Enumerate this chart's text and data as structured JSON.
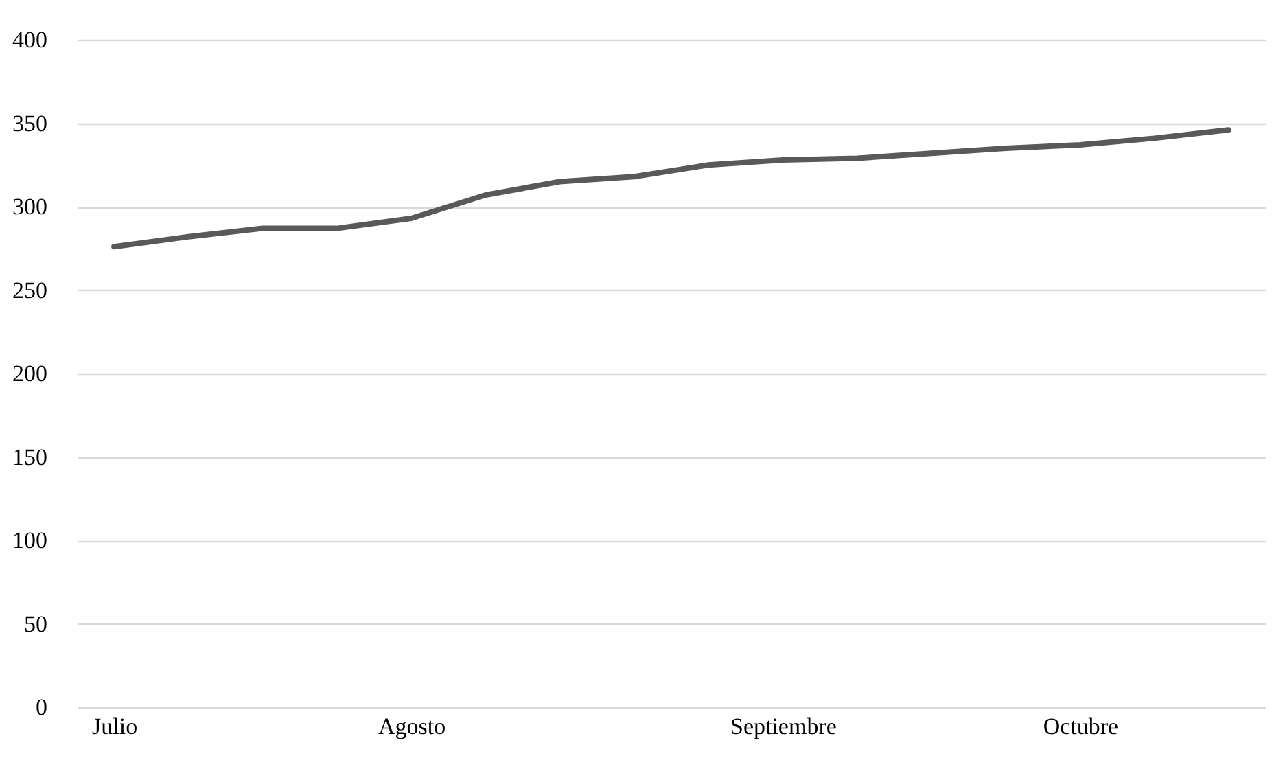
{
  "chart_data": {
    "type": "line",
    "categories": [
      "Julio",
      null,
      null,
      null,
      "Agosto",
      null,
      null,
      null,
      null,
      "Septiembre",
      null,
      null,
      null,
      "Octubre",
      null,
      null
    ],
    "series": [
      {
        "color": "#595959",
        "values": [
          276,
          282,
          287,
          287,
          293,
          307,
          315,
          318,
          325,
          328,
          329,
          332,
          335,
          337,
          341,
          346
        ]
      }
    ],
    "ylim": [
      0,
      400
    ],
    "yticks": [
      0,
      50,
      100,
      150,
      200,
      250,
      300,
      350,
      400
    ],
    "grid": "y",
    "legend": false,
    "marker": "none",
    "line_style": "solid"
  }
}
